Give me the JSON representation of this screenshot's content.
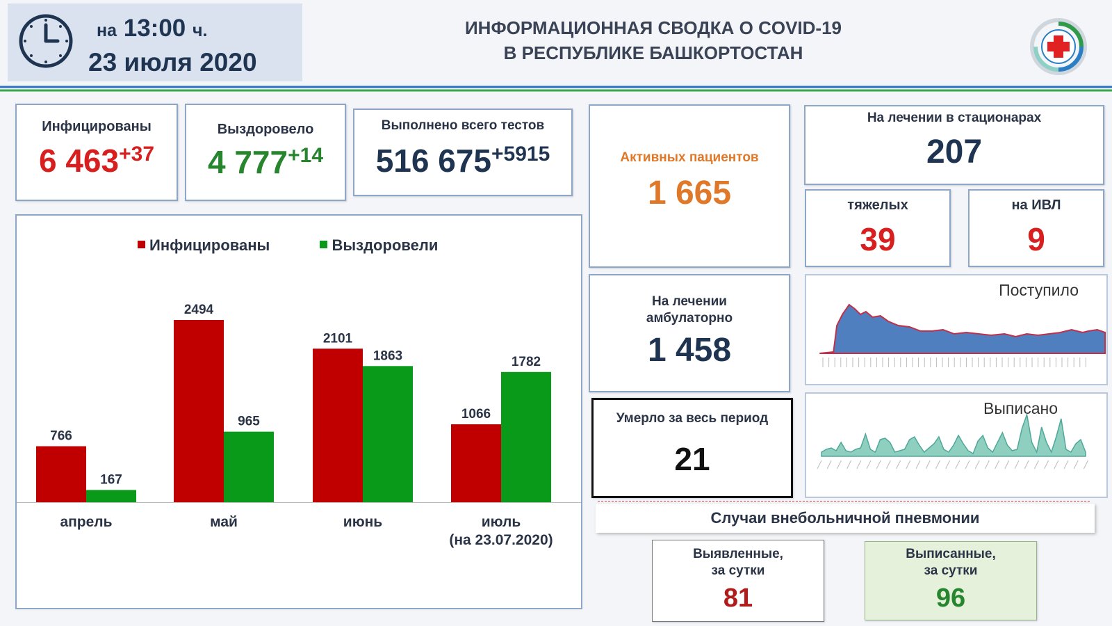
{
  "header": {
    "time_prefix": "на",
    "time": "13:00",
    "time_suffix": "ч.",
    "date": "23 июля 2020"
  },
  "title": {
    "line1": "ИНФОРМАЦИОННАЯ СВОДКА О COVID-19",
    "line2": "В РЕСПУБЛИКЕ БАШКОРТОСТАН"
  },
  "stats": {
    "infected": {
      "label": "Инфицированы",
      "value": "6 463",
      "delta": "+37"
    },
    "recovered": {
      "label": "Выздоровело",
      "value": "4 777",
      "delta": "+14"
    },
    "tests": {
      "label": "Выполнено всего тестов",
      "value": "516 675",
      "delta": "+5915"
    },
    "active": {
      "label": "Активных пациентов",
      "value": "1 665"
    },
    "hospital": {
      "label": "На лечении в стационарах",
      "value": "207"
    },
    "severe": {
      "label": "тяжелых",
      "value": "39"
    },
    "ventilator": {
      "label": "на ИВЛ",
      "value": "9"
    },
    "outpatient": {
      "label_line1": "На лечении",
      "label_line2": "амбулаторно",
      "value": "1 458"
    },
    "deaths": {
      "label": "Умерло за весь период",
      "value": "21"
    }
  },
  "pneumonia": {
    "title": "Случаи внебольничной пневмонии",
    "detected": {
      "label_line1": "Выявленные,",
      "label_line2": "за сутки",
      "value": "81"
    },
    "discharged": {
      "label_line1": "Выписанные,",
      "label_line2": "за сутки",
      "value": "96"
    }
  },
  "sparklines": {
    "admitted_title": "Поступило",
    "discharged_title": "Выписано"
  },
  "colors": {
    "infected": "#c00000",
    "recovered": "#0a9a1a",
    "admitted_fill": "#4f7fbf",
    "discharged_fill": "#8fcfc0"
  },
  "chart_data": {
    "type": "bar",
    "categories": [
      "апрель",
      "май",
      "июнь",
      "июль"
    ],
    "category_sublabels": [
      "",
      "",
      "",
      "(на 23.07.2020)"
    ],
    "series": [
      {
        "name": "Инфицированы",
        "values": [
          766,
          2494,
          2101,
          1066
        ]
      },
      {
        "name": "Выздоровели",
        "values": [
          167,
          965,
          1863,
          1782
        ]
      }
    ],
    "ylim": [
      0,
      2494
    ],
    "legend": "top-center",
    "grid": false
  }
}
